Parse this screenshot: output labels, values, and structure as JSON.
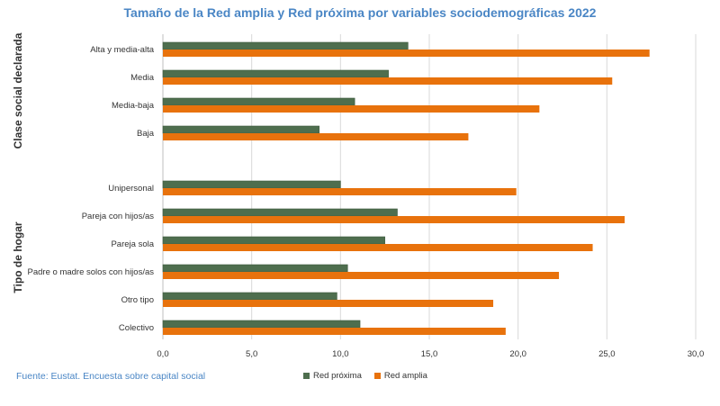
{
  "chart_data": {
    "type": "bar",
    "orientation": "horizontal",
    "title": "Tamaño de la Red amplia y Red próxima por variables sociodemográficas 2022",
    "groups": [
      {
        "label": "Clase social  declarada",
        "categories": [
          "Alta y media-alta",
          "Media",
          "Media-baja",
          "Baja"
        ]
      },
      {
        "label": "Tipo de hogar",
        "categories": [
          "Unipersonal",
          "Pareja con hijos/as",
          "Pareja sola",
          "Padre o madre solos con hijos/as",
          "Otro tipo",
          "Colectivo"
        ]
      }
    ],
    "categories": [
      "Alta y media-alta",
      "Media",
      "Media-baja",
      "Baja",
      "Unipersonal",
      "Pareja con hijos/as",
      "Pareja sola",
      "Padre o madre solos con hijos/as",
      "Otro tipo",
      "Colectivo"
    ],
    "series": [
      {
        "name": "Red próxima",
        "color": "#4e6e4e",
        "values": [
          13.8,
          12.7,
          10.8,
          8.8,
          10.0,
          13.2,
          12.5,
          10.4,
          9.8,
          11.1
        ]
      },
      {
        "name": "Red amplia",
        "color": "#e8720c",
        "values": [
          27.4,
          25.3,
          21.2,
          17.2,
          19.9,
          26.0,
          24.2,
          22.3,
          18.6,
          19.3
        ]
      }
    ],
    "xlim": [
      0,
      30
    ],
    "xticks": [
      "0,0",
      "5,0",
      "10,0",
      "15,0",
      "20,0",
      "25,0",
      "30,0"
    ],
    "grid": true,
    "legend": "bottom"
  },
  "source": "Fuente: Eustat. Encuesta sobre capital social"
}
